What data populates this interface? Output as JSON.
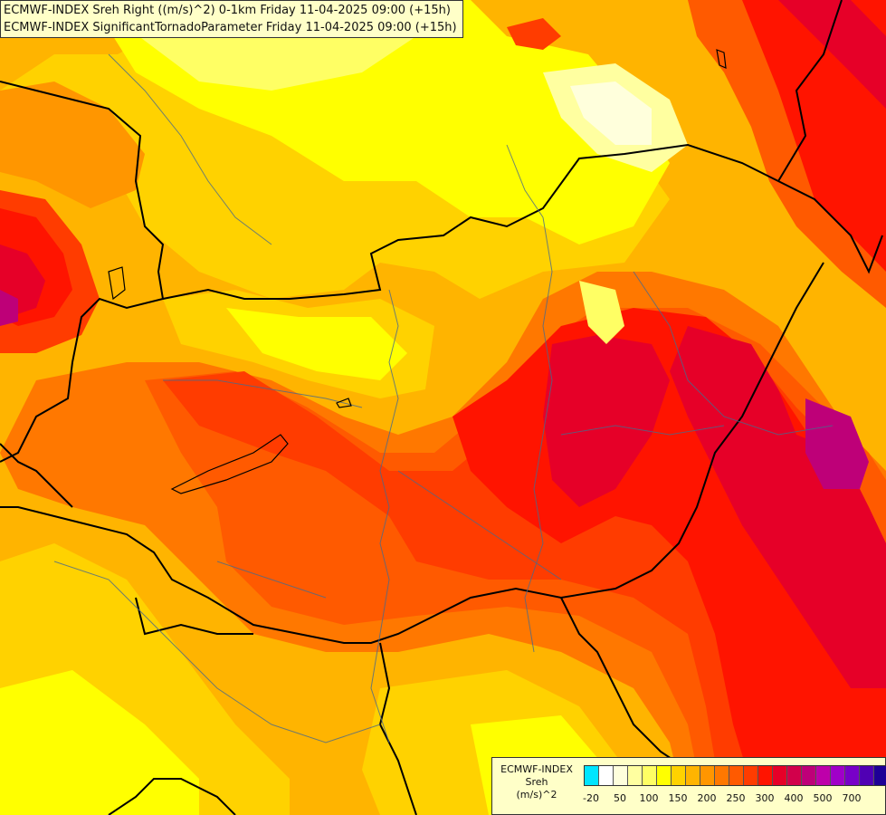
{
  "header": {
    "line1": "ECMWF-INDEX Sreh Right ((m/s)^2) 0-1km Friday 11-04-2025 09:00 (+15h)",
    "line2": "ECMWF-INDEX SignificantTornadoParameter Friday 11-04-2025 09:00 (+15h)"
  },
  "legend": {
    "model": "ECMWF-INDEX",
    "variable": "Sreh",
    "unit": "(m/s)^2",
    "swatch_colors": [
      "#00e5ff",
      "#ffffff",
      "#ffffdc",
      "#ffffa0",
      "#ffff64",
      "#ffff00",
      "#ffd200",
      "#ffb400",
      "#ff9600",
      "#ff7800",
      "#ff5a00",
      "#ff3c00",
      "#ff1400",
      "#e60028",
      "#d2004b",
      "#be0078",
      "#be00aa",
      "#a000c8",
      "#7800c8",
      "#5000b4",
      "#1e0096"
    ],
    "ticks": [
      {
        "label": "-20",
        "index": 0.5
      },
      {
        "label": "50",
        "index": 2.5
      },
      {
        "label": "100",
        "index": 4.5
      },
      {
        "label": "150",
        "index": 6.5
      },
      {
        "label": "200",
        "index": 8.5
      },
      {
        "label": "250",
        "index": 10.5
      },
      {
        "label": "300",
        "index": 12.5
      },
      {
        "label": "400",
        "index": 14.5
      },
      {
        "label": "500",
        "index": 16.5
      },
      {
        "label": "700",
        "index": 18.5
      }
    ]
  }
}
